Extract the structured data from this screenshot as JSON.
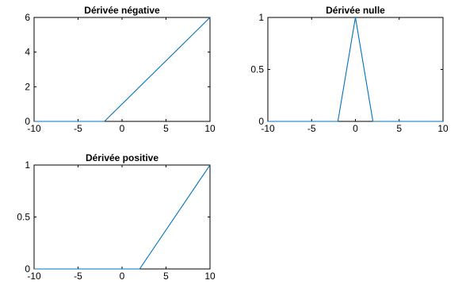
{
  "colors": {
    "series": "#0072BD",
    "axis": "#000000",
    "background": "#ffffff"
  },
  "chart_data": [
    {
      "type": "line",
      "title": "Dérivée négative",
      "xlim": [
        -10,
        10
      ],
      "ylim": [
        0,
        6
      ],
      "xticks": [
        -10,
        -5,
        0,
        5,
        10
      ],
      "yticks": [
        0,
        2,
        4,
        6
      ],
      "x": [
        -10,
        -2,
        10
      ],
      "y": [
        0,
        0,
        6
      ],
      "grid": false
    },
    {
      "type": "line",
      "title": "Dérivée nulle",
      "xlim": [
        -10,
        10
      ],
      "ylim": [
        0,
        1
      ],
      "xticks": [
        -10,
        -5,
        0,
        5,
        10
      ],
      "yticks": [
        0,
        0.5,
        1
      ],
      "x": [
        -10,
        -2,
        0,
        2,
        10
      ],
      "y": [
        0,
        0,
        1,
        0,
        0
      ],
      "grid": false
    },
    {
      "type": "line",
      "title": "Dérivée positive",
      "xlim": [
        -10,
        10
      ],
      "ylim": [
        0,
        1
      ],
      "xticks": [
        -10,
        -5,
        0,
        5,
        10
      ],
      "yticks": [
        0,
        0.5,
        1
      ],
      "x": [
        -10,
        2,
        10
      ],
      "y": [
        0,
        0,
        1
      ],
      "grid": false
    }
  ]
}
